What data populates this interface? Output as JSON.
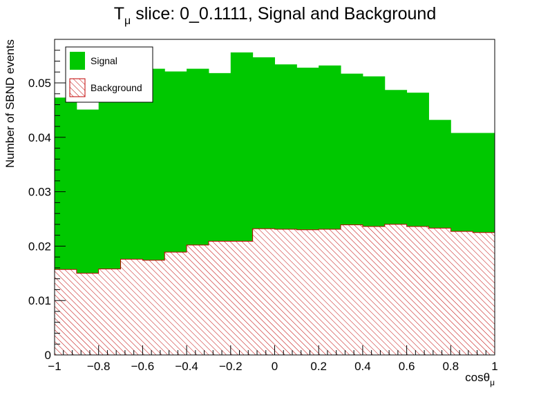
{
  "chart_data": {
    "type": "bar",
    "stacked": true,
    "title_main": "T",
    "title_sub": "μ",
    "title_rest": " slice: 0_0.1111, Signal and Background",
    "xlabel_main": "cosθ",
    "xlabel_sub": "μ",
    "ylabel": "Number of SBND events",
    "xlim": [
      -1,
      1
    ],
    "ylim": [
      0,
      0.058
    ],
    "x_ticks": [
      "−1",
      "−0.8",
      "−0.6",
      "−0.4",
      "−0.2",
      "0",
      "0.2",
      "0.4",
      "0.6",
      "0.8",
      "1"
    ],
    "y_ticks": [
      "0",
      "0.01",
      "0.02",
      "0.03",
      "0.04",
      "0.05"
    ],
    "bin_edges": [
      -1.0,
      -0.9,
      -0.8,
      -0.7,
      -0.6,
      -0.5,
      -0.4,
      -0.3,
      -0.2,
      -0.1,
      0.0,
      0.1,
      0.2,
      0.3,
      0.4,
      0.5,
      0.6,
      0.7,
      0.8,
      0.9,
      1.0
    ],
    "series": [
      {
        "name": "Signal",
        "color": "#00c800",
        "totals": [
          0.0473,
          0.0451,
          0.0478,
          0.0494,
          0.0526,
          0.0521,
          0.0526,
          0.0518,
          0.0556,
          0.0547,
          0.0534,
          0.0528,
          0.0532,
          0.0517,
          0.0512,
          0.0487,
          0.0482,
          0.0432,
          0.0408,
          0.0408
        ]
      },
      {
        "name": "Background",
        "color": "#c00000",
        "values": [
          0.0157,
          0.015,
          0.0158,
          0.0176,
          0.0174,
          0.0189,
          0.0202,
          0.0209,
          0.0209,
          0.0232,
          0.0231,
          0.023,
          0.0231,
          0.0239,
          0.0236,
          0.024,
          0.0236,
          0.0233,
          0.0227,
          0.0225
        ]
      }
    ],
    "legend_position": "top-left",
    "grid": false
  }
}
